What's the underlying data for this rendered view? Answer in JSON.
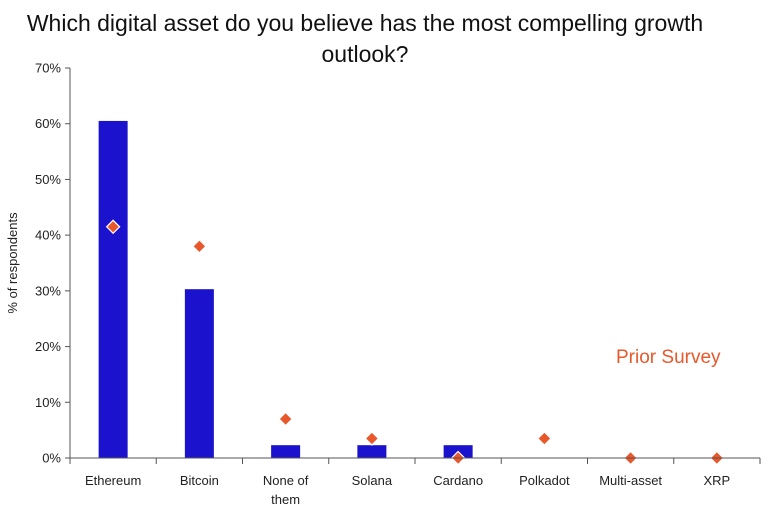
{
  "chart_data": {
    "type": "bar",
    "title": "Which digital asset do you believe has the most compelling growth outlook?",
    "ylabel": "% of respondents",
    "xlabel": "",
    "ylim": [
      0,
      70
    ],
    "yticks": [
      "0%",
      "10%",
      "20%",
      "30%",
      "40%",
      "50%",
      "60%",
      "70%"
    ],
    "categories": [
      "Ethereum",
      "Bitcoin",
      "None of them",
      "Solana",
      "Cardano",
      "Polkadot",
      "Multi-asset",
      "XRP"
    ],
    "category_lines": [
      [
        "Ethereum"
      ],
      [
        "Bitcoin"
      ],
      [
        "None of",
        "them"
      ],
      [
        "Solana"
      ],
      [
        "Cardano"
      ],
      [
        "Polkadot"
      ],
      [
        "Multi-asset"
      ],
      [
        "XRP"
      ]
    ],
    "series": [
      {
        "name": "",
        "kind": "bar",
        "color": "#1a12cc",
        "values": [
          60.5,
          30.3,
          2.3,
          2.3,
          2.3,
          0,
          0,
          0
        ]
      },
      {
        "name": "Prior Survey",
        "kind": "marker",
        "shape": "diamond",
        "color": "#e8582a",
        "values": [
          41.5,
          38.0,
          7.0,
          3.5,
          0,
          3.5,
          0,
          0
        ]
      }
    ],
    "legend": {
      "position": "right",
      "label": "Prior Survey"
    }
  }
}
